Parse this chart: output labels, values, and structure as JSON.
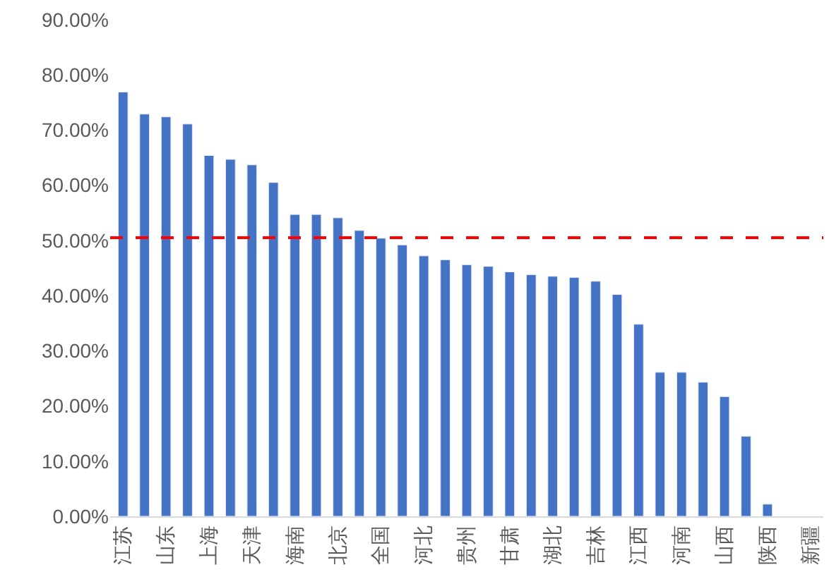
{
  "chart_data": {
    "type": "bar",
    "categories": [
      "江苏",
      null,
      "山东",
      null,
      "上海",
      null,
      "天津",
      null,
      "海南",
      null,
      "北京",
      null,
      "全国",
      null,
      "河北",
      null,
      "贵州",
      null,
      "甘肃",
      null,
      "湖北",
      null,
      "吉林",
      null,
      "江西",
      null,
      "河南",
      null,
      "山西",
      null,
      "陕西",
      null,
      "新疆"
    ],
    "values": [
      76.9,
      72.9,
      72.4,
      71.1,
      65.4,
      64.7,
      63.7,
      60.5,
      54.7,
      54.7,
      54.1,
      51.8,
      50.4,
      49.2,
      47.2,
      46.5,
      45.6,
      45.3,
      44.3,
      43.8,
      43.5,
      43.3,
      42.6,
      40.2,
      34.8,
      26.1,
      26.1,
      24.3,
      21.7,
      14.5,
      2.2,
      null,
      null
    ],
    "color": "#4472c4",
    "ylim": [
      0,
      90
    ],
    "yticks": [
      {
        "value": 0,
        "label": "0.00%"
      },
      {
        "value": 10,
        "label": "10.00%"
      },
      {
        "value": 20,
        "label": "20.00%"
      },
      {
        "value": 30,
        "label": "30.00%"
      },
      {
        "value": 40,
        "label": "40.00%"
      },
      {
        "value": 50,
        "label": "50.00%"
      },
      {
        "value": 60,
        "label": "60.00%"
      },
      {
        "value": 70,
        "label": "70.00%"
      },
      {
        "value": 80,
        "label": "80.00%"
      },
      {
        "value": 90,
        "label": "90.00%"
      }
    ],
    "ref_lines": [
      {
        "axis": "y",
        "value": 50.5,
        "color": "#ff0000",
        "line_style": "dashed"
      }
    ],
    "grid": false
  }
}
